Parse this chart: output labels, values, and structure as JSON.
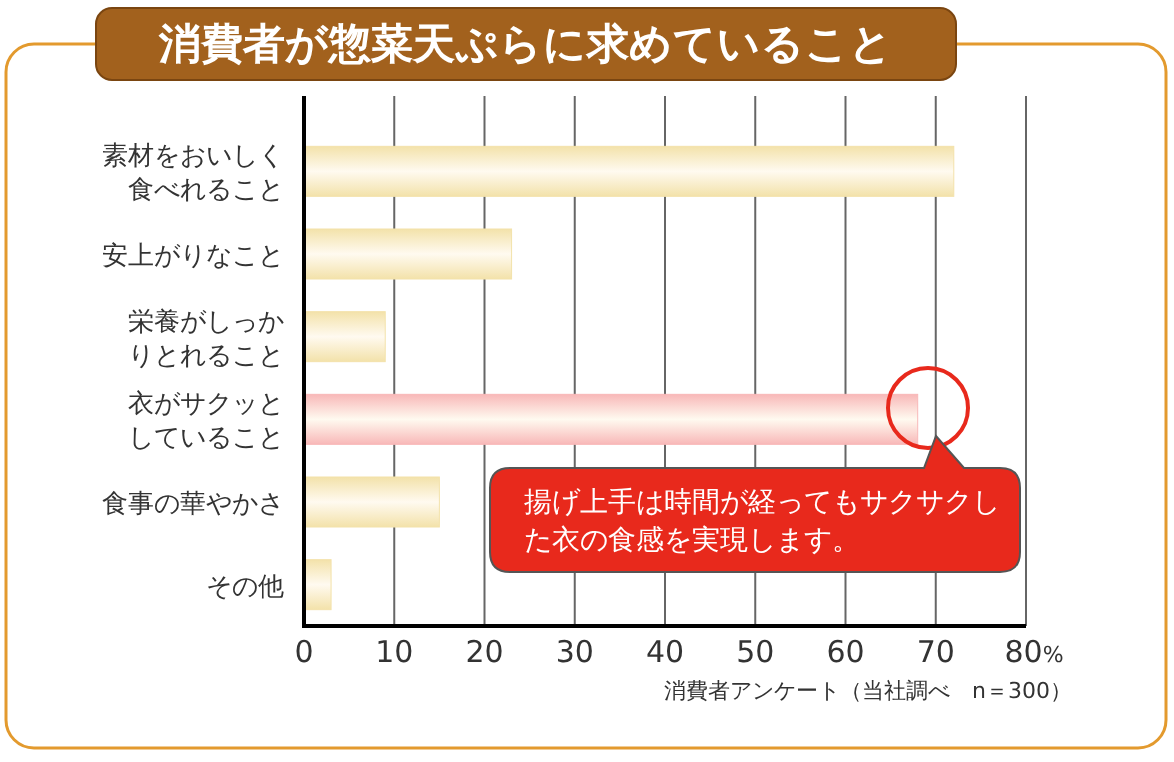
{
  "chart_data": {
    "type": "bar",
    "orientation": "horizontal",
    "title": "消費者が惣菜天ぷらに求めていること",
    "categories": [
      "素材をおいしく食べれること",
      "安上がりなこと",
      "栄養がしっかりとれること",
      "衣がサクッとしていること",
      "食事の華やかさ",
      "その他"
    ],
    "values": [
      72,
      23,
      9,
      68,
      15,
      3
    ],
    "colors": [
      "#f3e2aa",
      "#f3e2aa",
      "#f3e2aa",
      "#f8b8b8",
      "#f3e2aa",
      "#f3e2aa"
    ],
    "xlim": [
      0,
      80
    ],
    "xticks": [
      0,
      10,
      20,
      30,
      40,
      50,
      60,
      70,
      {
        "value": 80,
        "label": "80%"
      }
    ],
    "grid": "x",
    "annotations": [
      "揚げ上手は時間が経ってもサクサクした衣の食感を実現します。",
      "消費者アンケート（当社調べ　n＝300）"
    ]
  }
}
